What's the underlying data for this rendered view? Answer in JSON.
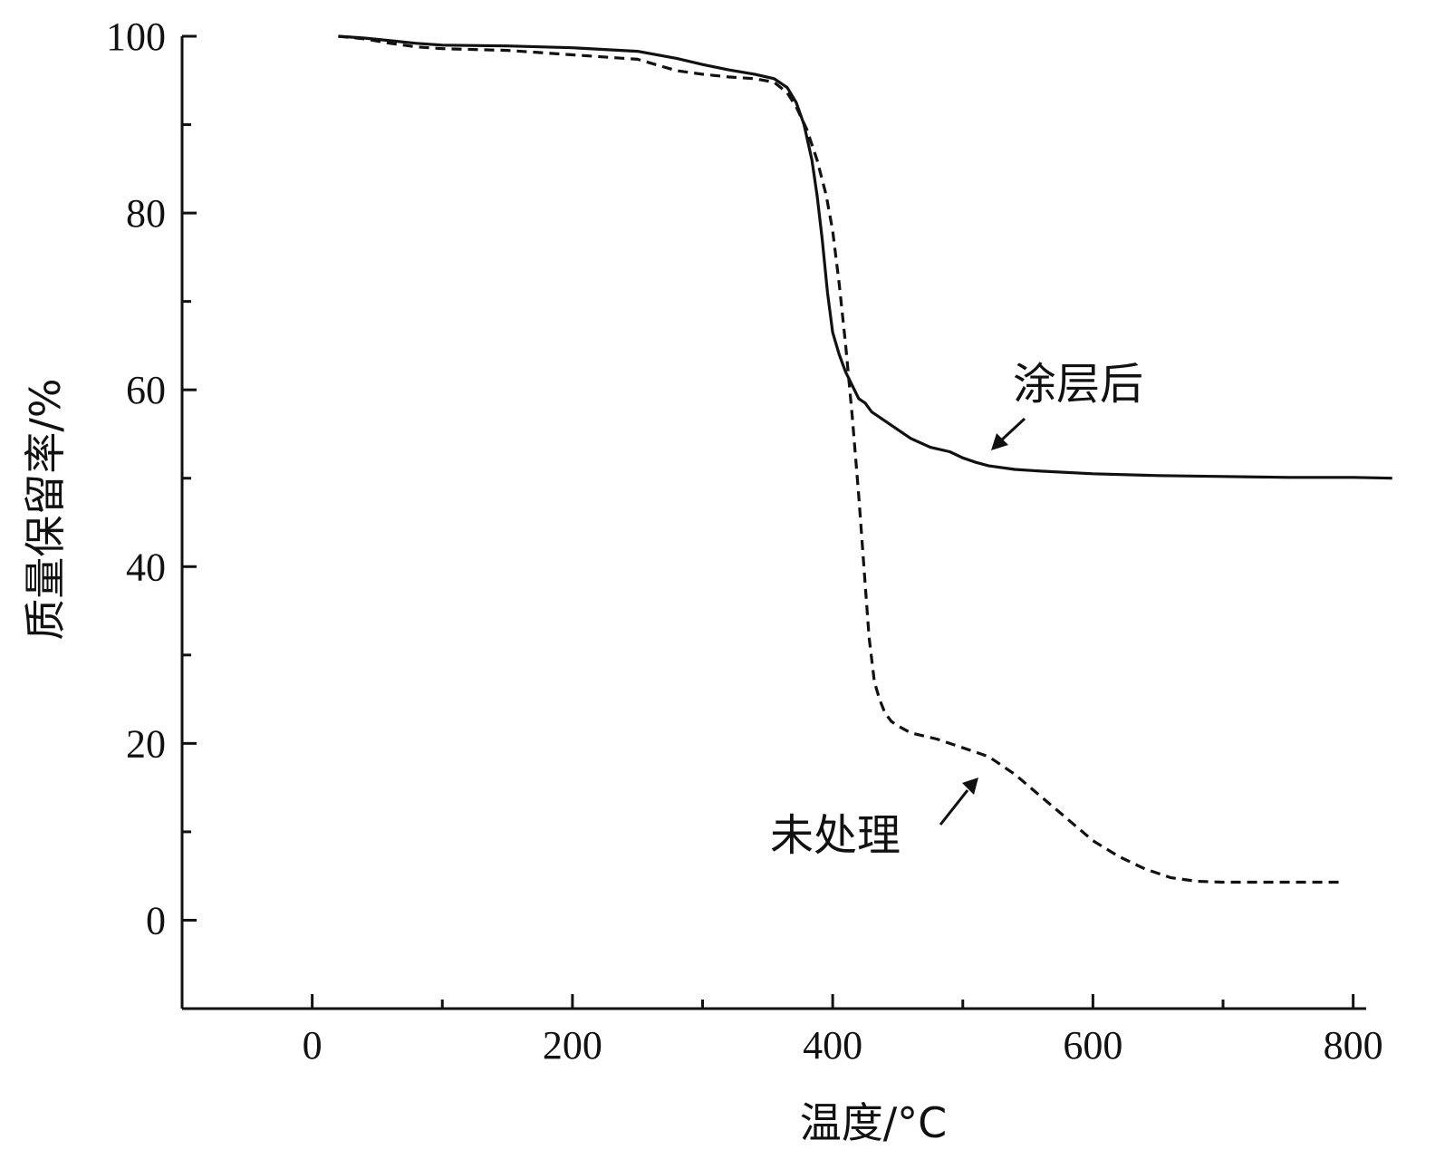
{
  "chart_data": {
    "type": "line",
    "title": "",
    "xlabel": "温度/°C",
    "ylabel": "质量保留率/%",
    "xlim": [
      -100,
      810
    ],
    "ylim": [
      -10,
      100
    ],
    "x_ticks_major": [
      0,
      200,
      400,
      600,
      800
    ],
    "x_ticks_minor": [
      100,
      300,
      500,
      700
    ],
    "y_ticks_major": [
      0,
      20,
      40,
      60,
      80,
      100
    ],
    "y_ticks_minor": [
      10,
      30,
      50,
      70,
      90
    ],
    "grid": false,
    "series": [
      {
        "name": "涂层后",
        "style": "solid",
        "color": "#111111",
        "x": [
          20,
          40,
          60,
          80,
          100,
          150,
          200,
          250,
          280,
          300,
          320,
          340,
          355,
          365,
          372,
          378,
          384,
          388,
          392,
          396,
          400,
          405,
          410,
          415,
          420,
          425,
          430,
          440,
          450,
          460,
          475,
          490,
          500,
          510,
          520,
          540,
          560,
          600,
          650,
          700,
          750,
          800,
          830
        ],
        "y": [
          100,
          99.8,
          99.5,
          99.2,
          99,
          98.9,
          98.7,
          98.3,
          97.5,
          96.8,
          96.2,
          95.7,
          95.2,
          94.2,
          92.5,
          90,
          86,
          82,
          77,
          71,
          66.5,
          64,
          62,
          60.5,
          59,
          58.5,
          57.5,
          56.5,
          55.5,
          54.5,
          53.5,
          53,
          52.3,
          51.8,
          51.4,
          51,
          50.8,
          50.5,
          50.3,
          50.2,
          50.1,
          50.1,
          50
        ]
      },
      {
        "name": "未处理",
        "style": "dashed",
        "color": "#111111",
        "x": [
          20,
          40,
          60,
          80,
          100,
          150,
          200,
          250,
          280,
          300,
          320,
          340,
          355,
          365,
          372,
          380,
          388,
          395,
          400,
          405,
          410,
          415,
          420,
          425,
          428,
          432,
          436,
          440,
          445,
          450,
          460,
          480,
          500,
          520,
          540,
          560,
          580,
          600,
          620,
          640,
          660,
          680,
          700,
          750,
          790
        ],
        "y": [
          100,
          99.7,
          99.2,
          98.8,
          98.6,
          98.4,
          97.9,
          97.4,
          96.1,
          95.7,
          95.4,
          95.2,
          94.8,
          93.6,
          92,
          89.5,
          86,
          82,
          78,
          72,
          65,
          57,
          48,
          38,
          32,
          27,
          25,
          23.5,
          22.5,
          22,
          21.2,
          20.5,
          19.5,
          18.5,
          16.5,
          14,
          11.5,
          9,
          7.2,
          5.8,
          4.8,
          4.4,
          4.3,
          4.3,
          4.3
        ]
      }
    ],
    "annotations": [
      {
        "text": "涂层后",
        "series": "涂层后"
      },
      {
        "text": "未处理",
        "series": "未处理"
      }
    ]
  }
}
